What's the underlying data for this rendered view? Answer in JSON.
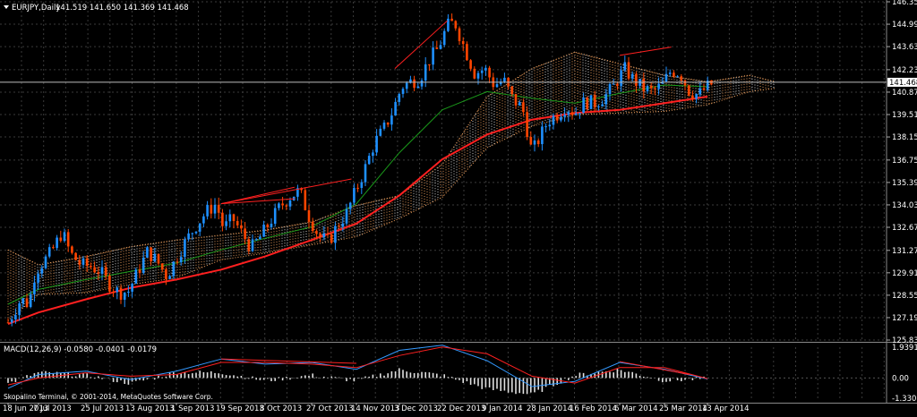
{
  "window": {
    "symbol_header": "EURJPY,Daily",
    "ohlc": "141.519 141.650 141.369 141.468"
  },
  "macd": {
    "header": "MACD(12,26,9) -0.0580 -0.0401 -0.0179",
    "footer": "Skopalino Terminal, © 2001-2014, MetaQuotes Software Corp.",
    "price_labels": [
      "1.9391",
      "0.00",
      "-1.3303"
    ]
  },
  "price_axis": {
    "labels": [
      "146.350",
      "144.990",
      "143.630",
      "142.230",
      "140.870",
      "139.510",
      "138.150",
      "136.750",
      "135.390",
      "134.030",
      "132.670",
      "131.270",
      "129.910",
      "128.550",
      "127.190",
      "125.830"
    ],
    "current_price": "141.468"
  },
  "time_axis": {
    "labels": [
      "18 Jun 2013",
      "7 Jul 2013",
      "25 Jul 2013",
      "13 Aug 2013",
      "1 Sep 2013",
      "19 Sep 2013",
      "8 Oct 2013",
      "27 Oct 2013",
      "14 Nov 2013",
      "3 Dec 2013",
      "22 Dec 2013",
      "9 Jan 2014",
      "28 Jan 2014",
      "16 Feb 2014",
      "6 Mar 2014",
      "25 Mar 2014",
      "13 Apr 2014"
    ]
  },
  "colors": {
    "background": "#000000",
    "grid": "#3a3a3a",
    "bull_candle": "#1e90ff",
    "bear_candle": "#ff4500",
    "ma_slow": "#ff2020",
    "ma_fast": "#1a9a1a",
    "cloud_bull": "#f4a460",
    "cloud_bear": "#e8e8e8",
    "macd_line": "#3399ff",
    "signal_line": "#ff2020",
    "histogram": "#e0e0e0"
  },
  "chart_data": [
    {
      "type": "candlestick",
      "title": "EURJPY,Daily",
      "ylim": [
        125.83,
        146.35
      ],
      "x_start": "18 Jun 2013",
      "x_end": "20 Apr 2014",
      "series": [
        {
          "name": "EURJPY",
          "close_path": [
            [
              "18 Jun 2013",
              126.9
            ],
            [
              "22 Jun 2013",
              127.6
            ],
            [
              "26 Jun 2013",
              128.3
            ],
            [
              "1 Jul 2013",
              128.0
            ],
            [
              "5 Jul 2013",
              130.0
            ],
            [
              "9 Jul 2013",
              130.6
            ],
            [
              "12 Jul 2013",
              131.2
            ],
            [
              "16 Jul 2013",
              132.4
            ],
            [
              "19 Jul 2013",
              131.1
            ],
            [
              "23 Jul 2013",
              130.4
            ],
            [
              "27 Jul 2013",
              130.3
            ],
            [
              "31 Jul 2013",
              130.0
            ],
            [
              "4 Aug 2013",
              129.2
            ],
            [
              "8 Aug 2013",
              128.7
            ],
            [
              "12 Aug 2013",
              128.8
            ],
            [
              "16 Aug 2013",
              130.0
            ],
            [
              "20 Aug 2013",
              131.2
            ],
            [
              "24 Aug 2013",
              130.6
            ],
            [
              "28 Aug 2013",
              129.7
            ],
            [
              "1 Sep 2013",
              130.8
            ],
            [
              "5 Sep 2013",
              131.9
            ],
            [
              "9 Sep 2013",
              132.8
            ],
            [
              "13 Sep 2013",
              133.6
            ],
            [
              "17 Sep 2013",
              134.1
            ],
            [
              "20 Sep 2013",
              132.6
            ],
            [
              "24 Sep 2013",
              133.2
            ],
            [
              "28 Sep 2013",
              132.3
            ],
            [
              "2 Oct 2013",
              131.4
            ],
            [
              "6 Oct 2013",
              132.1
            ],
            [
              "10 Oct 2013",
              133.0
            ],
            [
              "14 Oct 2013",
              133.9
            ],
            [
              "18 Oct 2013",
              134.5
            ],
            [
              "22 Oct 2013",
              134.9
            ],
            [
              "26 Oct 2013",
              133.3
            ],
            [
              "30 Oct 2013",
              132.1
            ],
            [
              "3 Nov 2013",
              131.8
            ],
            [
              "6 Nov 2013",
              132.7
            ],
            [
              "10 Nov 2013",
              133.5
            ],
            [
              "14 Nov 2013",
              135.0
            ],
            [
              "18 Nov 2013",
              136.3
            ],
            [
              "22 Nov 2013",
              137.8
            ],
            [
              "26 Nov 2013",
              138.6
            ],
            [
              "30 Nov 2013",
              139.7
            ],
            [
              "4 Dec 2013",
              141.2
            ],
            [
              "8 Dec 2013",
              141.5
            ],
            [
              "12 Dec 2013",
              141.7
            ],
            [
              "16 Dec 2013",
              142.8
            ],
            [
              "20 Dec 2013",
              143.5
            ],
            [
              "24 Dec 2013",
              144.9
            ],
            [
              "27 Dec 2013",
              145.1
            ],
            [
              "31 Dec 2013",
              143.5
            ],
            [
              "4 Jan 2014",
              142.0
            ],
            [
              "8 Jan 2014",
              142.3
            ],
            [
              "12 Jan 2014",
              141.3
            ],
            [
              "16 Jan 2014",
              141.6
            ],
            [
              "20 Jan 2014",
              140.4
            ],
            [
              "24 Jan 2014",
              139.9
            ],
            [
              "28 Jan 2014",
              137.2
            ],
            [
              "31 Jan 2014",
              138.0
            ],
            [
              "4 Feb 2014",
              139.1
            ],
            [
              "8 Feb 2014",
              139.5
            ],
            [
              "12 Feb 2014",
              140.0
            ],
            [
              "16 Feb 2014",
              139.6
            ],
            [
              "20 Feb 2014",
              140.3
            ],
            [
              "24 Feb 2014",
              140.2
            ],
            [
              "28 Feb 2014",
              140.6
            ],
            [
              "4 Mar 2014",
              141.3
            ],
            [
              "8 Mar 2014",
              142.3
            ],
            [
              "12 Mar 2014",
              141.6
            ],
            [
              "16 Mar 2014",
              141.1
            ],
            [
              "20 Mar 2014",
              140.9
            ],
            [
              "24 Mar 2014",
              141.3
            ],
            [
              "28 Mar 2014",
              142.2
            ],
            [
              "1 Apr 2014",
              142.0
            ],
            [
              "5 Apr 2014",
              140.9
            ],
            [
              "9 Apr 2014",
              140.7
            ],
            [
              "13 Apr 2014",
              141.2
            ],
            [
              "16 Apr 2014",
              141.47
            ]
          ]
        },
        {
          "name": "MA slow",
          "path": [
            [
              "18 Jun 2013",
              126.8
            ],
            [
              "7 Jul 2013",
              127.5
            ],
            [
              "25 Jul 2013",
              128.3
            ],
            [
              "13 Aug 2013",
              129.0
            ],
            [
              "1 Sep 2013",
              129.5
            ],
            [
              "19 Sep 2013",
              130.1
            ],
            [
              "8 Oct 2013",
              130.9
            ],
            [
              "27 Oct 2013",
              131.9
            ],
            [
              "14 Nov 2013",
              132.9
            ],
            [
              "3 Dec 2013",
              134.6
            ],
            [
              "22 Dec 2013",
              136.8
            ],
            [
              "9 Jan 2014",
              138.3
            ],
            [
              "28 Jan 2014",
              139.2
            ],
            [
              "16 Feb 2014",
              139.6
            ],
            [
              "6 Mar 2014",
              139.8
            ],
            [
              "25 Mar 2014",
              140.2
            ],
            [
              "13 Apr 2014",
              140.6
            ]
          ]
        },
        {
          "name": "MA fast",
          "path": [
            [
              "18 Jun 2013",
              128.0
            ],
            [
              "7 Jul 2013",
              128.9
            ],
            [
              "25 Jul 2013",
              129.5
            ],
            [
              "13 Aug 2013",
              130.0
            ],
            [
              "1 Sep 2013",
              130.5
            ],
            [
              "19 Sep 2013",
              131.3
            ],
            [
              "8 Oct 2013",
              132.0
            ],
            [
              "27 Oct 2013",
              132.7
            ],
            [
              "14 Nov 2013",
              134.1
            ],
            [
              "3 Dec 2013",
              137.2
            ],
            [
              "22 Dec 2013",
              139.8
            ],
            [
              "9 Jan 2014",
              140.9
            ],
            [
              "28 Jan 2014",
              140.5
            ],
            [
              "16 Feb 2014",
              140.2
            ],
            [
              "6 Mar 2014",
              140.8
            ],
            [
              "25 Mar 2014",
              141.3
            ],
            [
              "13 Apr 2014",
              141.2
            ]
          ]
        },
        {
          "name": "Cloud top",
          "path": [
            [
              "18 Jun 2013",
              131.3
            ],
            [
              "7 Jul 2013",
              130.4
            ],
            [
              "25 Jul 2013",
              130.9
            ],
            [
              "13 Aug 2013",
              131.5
            ],
            [
              "1 Sep 2013",
              131.9
            ],
            [
              "19 Sep 2013",
              132.2
            ],
            [
              "8 Oct 2013",
              132.5
            ],
            [
              "27 Oct 2013",
              133.0
            ],
            [
              "14 Nov 2013",
              134.0
            ],
            [
              "3 Dec 2013",
              134.6
            ],
            [
              "22 Dec 2013",
              136.5
            ],
            [
              "9 Jan 2014",
              140.6
            ],
            [
              "28 Jan 2014",
              142.3
            ],
            [
              "16 Feb 2014",
              143.3
            ],
            [
              "6 Mar 2014",
              142.6
            ],
            [
              "25 Mar 2014",
              141.9
            ],
            [
              "13 Apr 2014",
              141.5
            ],
            [
              "1 May 2014",
              141.9
            ],
            [
              "12 May 2014",
              141.5
            ]
          ]
        },
        {
          "name": "Cloud bottom",
          "path": [
            [
              "18 Jun 2013",
              127.0
            ],
            [
              "7 Jul 2013",
              128.6
            ],
            [
              "25 Jul 2013",
              128.7
            ],
            [
              "13 Aug 2013",
              129.2
            ],
            [
              "1 Sep 2013",
              129.6
            ],
            [
              "19 Sep 2013",
              130.7
            ],
            [
              "8 Oct 2013",
              131.1
            ],
            [
              "27 Oct 2013",
              131.6
            ],
            [
              "14 Nov 2013",
              132.1
            ],
            [
              "3 Dec 2013",
              133.2
            ],
            [
              "22 Dec 2013",
              134.5
            ],
            [
              "9 Jan 2014",
              137.5
            ],
            [
              "28 Jan 2014",
              138.8
            ],
            [
              "16 Feb 2014",
              139.5
            ],
            [
              "6 Mar 2014",
              139.6
            ],
            [
              "25 Mar 2014",
              139.7
            ],
            [
              "13 Apr 2014",
              140.1
            ],
            [
              "1 May 2014",
              140.9
            ],
            [
              "12 May 2014",
              141.1
            ]
          ]
        }
      ],
      "annotations": [
        {
          "text": "current price",
          "value": 141.468
        }
      ]
    },
    {
      "type": "macd",
      "title": "MACD(12,26,9)",
      "values": {
        "macd": -0.058,
        "signal": -0.0401,
        "histogram": -0.0179
      },
      "ylim": [
        -1.3303,
        1.9391
      ],
      "series": [
        {
          "name": "MACD",
          "path": [
            [
              "18 Jun 2013",
              -0.6
            ],
            [
              "7 Jul 2013",
              0.2
            ],
            [
              "25 Jul 2013",
              0.4
            ],
            [
              "13 Aug 2013",
              -0.1
            ],
            [
              "1 Sep 2013",
              0.4
            ],
            [
              "19 Sep 2013",
              1.1
            ],
            [
              "8 Oct 2013",
              0.8
            ],
            [
              "27 Oct 2013",
              0.9
            ],
            [
              "14 Nov 2013",
              0.5
            ],
            [
              "3 Dec 2013",
              1.6
            ],
            [
              "22 Dec 2013",
              1.9
            ],
            [
              "9 Jan 2014",
              1.0
            ],
            [
              "28 Jan 2014",
              -0.5
            ],
            [
              "16 Feb 2014",
              -0.2
            ],
            [
              "6 Mar 2014",
              0.9
            ],
            [
              "25 Mar 2014",
              0.5
            ],
            [
              "13 Apr 2014",
              -0.06
            ]
          ]
        },
        {
          "name": "Signal",
          "path": [
            [
              "18 Jun 2013",
              -0.4
            ],
            [
              "7 Jul 2013",
              0.0
            ],
            [
              "25 Jul 2013",
              0.3
            ],
            [
              "13 Aug 2013",
              0.1
            ],
            [
              "1 Sep 2013",
              0.2
            ],
            [
              "19 Sep 2013",
              0.9
            ],
            [
              "8 Oct 2013",
              0.9
            ],
            [
              "27 Oct 2013",
              0.8
            ],
            [
              "14 Nov 2013",
              0.6
            ],
            [
              "3 Dec 2013",
              1.3
            ],
            [
              "22 Dec 2013",
              1.8
            ],
            [
              "9 Jan 2014",
              1.4
            ],
            [
              "28 Jan 2014",
              0.1
            ],
            [
              "16 Feb 2014",
              -0.3
            ],
            [
              "6 Mar 2014",
              0.6
            ],
            [
              "25 Mar 2014",
              0.6
            ],
            [
              "13 Apr 2014",
              -0.04
            ]
          ]
        }
      ]
    }
  ]
}
